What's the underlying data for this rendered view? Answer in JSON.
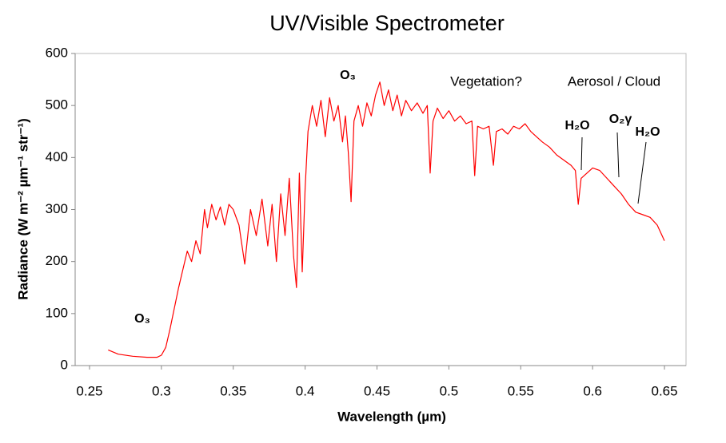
{
  "chart_data": {
    "type": "line",
    "title": "UV/Visible Spectrometer",
    "x_label": "Wavelength (µm)",
    "y_label": "Radiance (W m⁻² µm⁻¹ str⁻¹)",
    "xlim": [
      0.24,
      0.665
    ],
    "ylim": [
      0,
      600
    ],
    "xticks": [
      0.25,
      0.3,
      0.35,
      0.4,
      0.45,
      0.5,
      0.55,
      0.6,
      0.65
    ],
    "yticks": [
      0,
      100,
      200,
      300,
      400,
      500,
      600
    ],
    "annotations": [
      "O₃",
      "O₃",
      "Vegetation?",
      "Aerosol / Cloud",
      "H₂O",
      "O₂γ",
      "H₂O"
    ],
    "series": [
      {
        "color": "#ff0000",
        "x": [
          0.263,
          0.27,
          0.28,
          0.29,
          0.297,
          0.3,
          0.303,
          0.306,
          0.309,
          0.312,
          0.315,
          0.318,
          0.321,
          0.324,
          0.327,
          0.33,
          0.332,
          0.335,
          0.338,
          0.341,
          0.344,
          0.347,
          0.35,
          0.354,
          0.358,
          0.362,
          0.366,
          0.37,
          0.374,
          0.377,
          0.38,
          0.383,
          0.386,
          0.389,
          0.392,
          0.394,
          0.396,
          0.398,
          0.4,
          0.402,
          0.405,
          0.408,
          0.411,
          0.414,
          0.417,
          0.42,
          0.423,
          0.426,
          0.428,
          0.43,
          0.432,
          0.434,
          0.437,
          0.44,
          0.443,
          0.446,
          0.449,
          0.452,
          0.455,
          0.458,
          0.461,
          0.464,
          0.467,
          0.47,
          0.474,
          0.478,
          0.482,
          0.485,
          0.487,
          0.489,
          0.492,
          0.496,
          0.5,
          0.504,
          0.508,
          0.512,
          0.516,
          0.518,
          0.52,
          0.524,
          0.528,
          0.531,
          0.533,
          0.537,
          0.541,
          0.545,
          0.549,
          0.553,
          0.557,
          0.561,
          0.565,
          0.57,
          0.575,
          0.58,
          0.585,
          0.588,
          0.59,
          0.592,
          0.596,
          0.6,
          0.605,
          0.61,
          0.615,
          0.62,
          0.625,
          0.63,
          0.635,
          0.64,
          0.645,
          0.65
        ],
        "values": [
          30,
          22,
          18,
          16,
          16,
          20,
          35,
          70,
          110,
          150,
          185,
          220,
          200,
          240,
          215,
          300,
          265,
          310,
          280,
          305,
          270,
          310,
          300,
          270,
          195,
          300,
          250,
          320,
          230,
          310,
          200,
          330,
          250,
          360,
          210,
          150,
          370,
          180,
          340,
          450,
          500,
          460,
          510,
          440,
          515,
          470,
          500,
          430,
          480,
          410,
          315,
          470,
          500,
          460,
          505,
          480,
          520,
          545,
          500,
          530,
          490,
          520,
          480,
          510,
          490,
          505,
          485,
          500,
          370,
          470,
          495,
          475,
          490,
          470,
          480,
          465,
          470,
          365,
          460,
          455,
          460,
          385,
          450,
          455,
          445,
          460,
          455,
          465,
          450,
          440,
          430,
          420,
          405,
          395,
          385,
          375,
          310,
          360,
          370,
          380,
          375,
          360,
          345,
          330,
          310,
          295,
          290,
          285,
          270,
          240
        ]
      }
    ]
  }
}
